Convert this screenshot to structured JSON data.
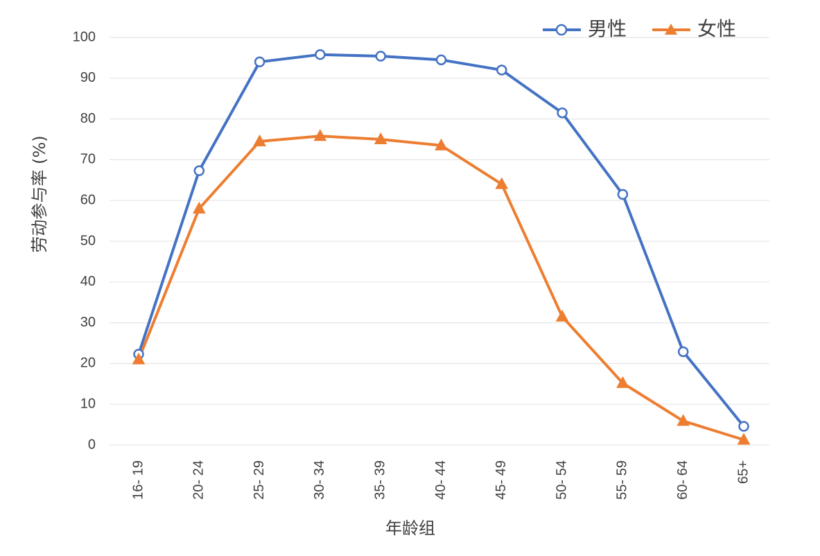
{
  "chart_data": {
    "type": "line",
    "categories": [
      "16- 19",
      "20- 24",
      "25- 29",
      "30- 34",
      "35- 39",
      "40- 44",
      "45- 49",
      "50- 54",
      "55- 59",
      "60- 64",
      "65+"
    ],
    "series": [
      {
        "name": "男性",
        "color": "#4472c4",
        "marker": "circle",
        "values": [
          22.3,
          67.3,
          94.0,
          95.8,
          95.4,
          94.5,
          92.0,
          81.5,
          61.5,
          22.9,
          4.6
        ]
      },
      {
        "name": "女性",
        "color": "#ed7d31",
        "marker": "triangle",
        "values": [
          21.0,
          58.0,
          74.5,
          75.8,
          75.0,
          73.5,
          64.0,
          31.5,
          15.2,
          5.9,
          1.3
        ]
      }
    ],
    "yticks": [
      "0",
      "10",
      "20",
      "30",
      "40",
      "50",
      "60",
      "70",
      "80",
      "90",
      "100"
    ],
    "ylim": [
      0,
      100
    ],
    "xlabel": "年龄组",
    "ylabel": "劳动参与率 (%)",
    "grid": true,
    "legend_position": "top-right"
  }
}
